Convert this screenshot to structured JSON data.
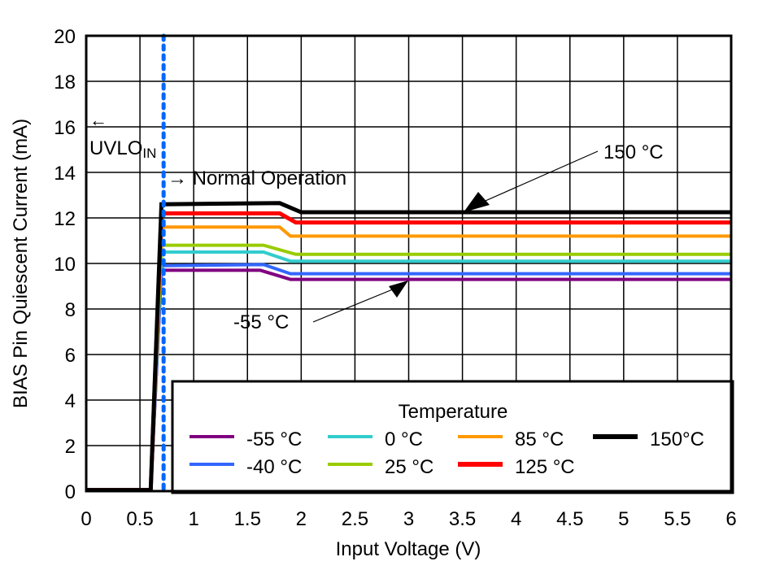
{
  "chart_data": {
    "type": "line",
    "title": "",
    "xlabel": "Input Voltage (V)",
    "ylabel": "BIAS Pin Quiescent Current (mA)",
    "xlim": [
      0,
      6
    ],
    "ylim": [
      0,
      20
    ],
    "xticks": [
      "0",
      "0.5",
      "1",
      "1.5",
      "2",
      "2.5",
      "3",
      "3.5",
      "4",
      "4.5",
      "5",
      "5.5",
      "6"
    ],
    "yticks": [
      "0",
      "2",
      "4",
      "6",
      "8",
      "10",
      "12",
      "14",
      "16",
      "18",
      "20"
    ],
    "grid": true,
    "legend": {
      "title": "Temperature",
      "placement": "bottom-right"
    },
    "series": [
      {
        "name": "-55 °C",
        "color": "#800080",
        "x": [
          0,
          0.6,
          0.7,
          1.62,
          1.9,
          6
        ],
        "y": [
          0.05,
          0.05,
          9.7,
          9.7,
          9.3,
          9.3
        ]
      },
      {
        "name": "-40 °C",
        "color": "#3366ff",
        "x": [
          0,
          0.6,
          0.7,
          1.65,
          1.9,
          6
        ],
        "y": [
          0.05,
          0.05,
          9.9,
          9.95,
          9.55,
          9.55
        ]
      },
      {
        "name": "0 °C",
        "color": "#33cccc",
        "x": [
          0,
          0.6,
          0.7,
          1.65,
          1.9,
          6
        ],
        "y": [
          0.05,
          0.05,
          10.5,
          10.5,
          10.1,
          10.1
        ]
      },
      {
        "name": "25 °C",
        "color": "#99cc00",
        "x": [
          0,
          0.6,
          0.7,
          1.65,
          1.95,
          6
        ],
        "y": [
          0.05,
          0.05,
          10.8,
          10.8,
          10.4,
          10.4
        ]
      },
      {
        "name": "85 °C",
        "color": "#ff9900",
        "x": [
          0,
          0.6,
          0.7,
          1.8,
          1.9,
          6
        ],
        "y": [
          0.05,
          0.05,
          11.6,
          11.6,
          11.2,
          11.2
        ]
      },
      {
        "name": "125 °C",
        "color": "#ff0000",
        "x": [
          0,
          0.6,
          0.7,
          1.8,
          1.95,
          6
        ],
        "y": [
          0.05,
          0.05,
          12.2,
          12.2,
          11.8,
          11.8
        ]
      },
      {
        "name": "150°C",
        "color": "#000000",
        "x": [
          0,
          0.6,
          0.7,
          1.8,
          2.0,
          6
        ],
        "y": [
          0.05,
          0.05,
          12.6,
          12.65,
          12.25,
          12.25
        ]
      }
    ],
    "vline": {
      "x": 0.72,
      "color": "#0066ff",
      "style": "dotted"
    },
    "annotations": {
      "uvlo_arrow": "←",
      "uvlo_main": "UVLO",
      "uvlo_sub": "IN",
      "normal": "→ Normal Operation",
      "hot": "150 °C",
      "cold": "-55 °C"
    }
  }
}
